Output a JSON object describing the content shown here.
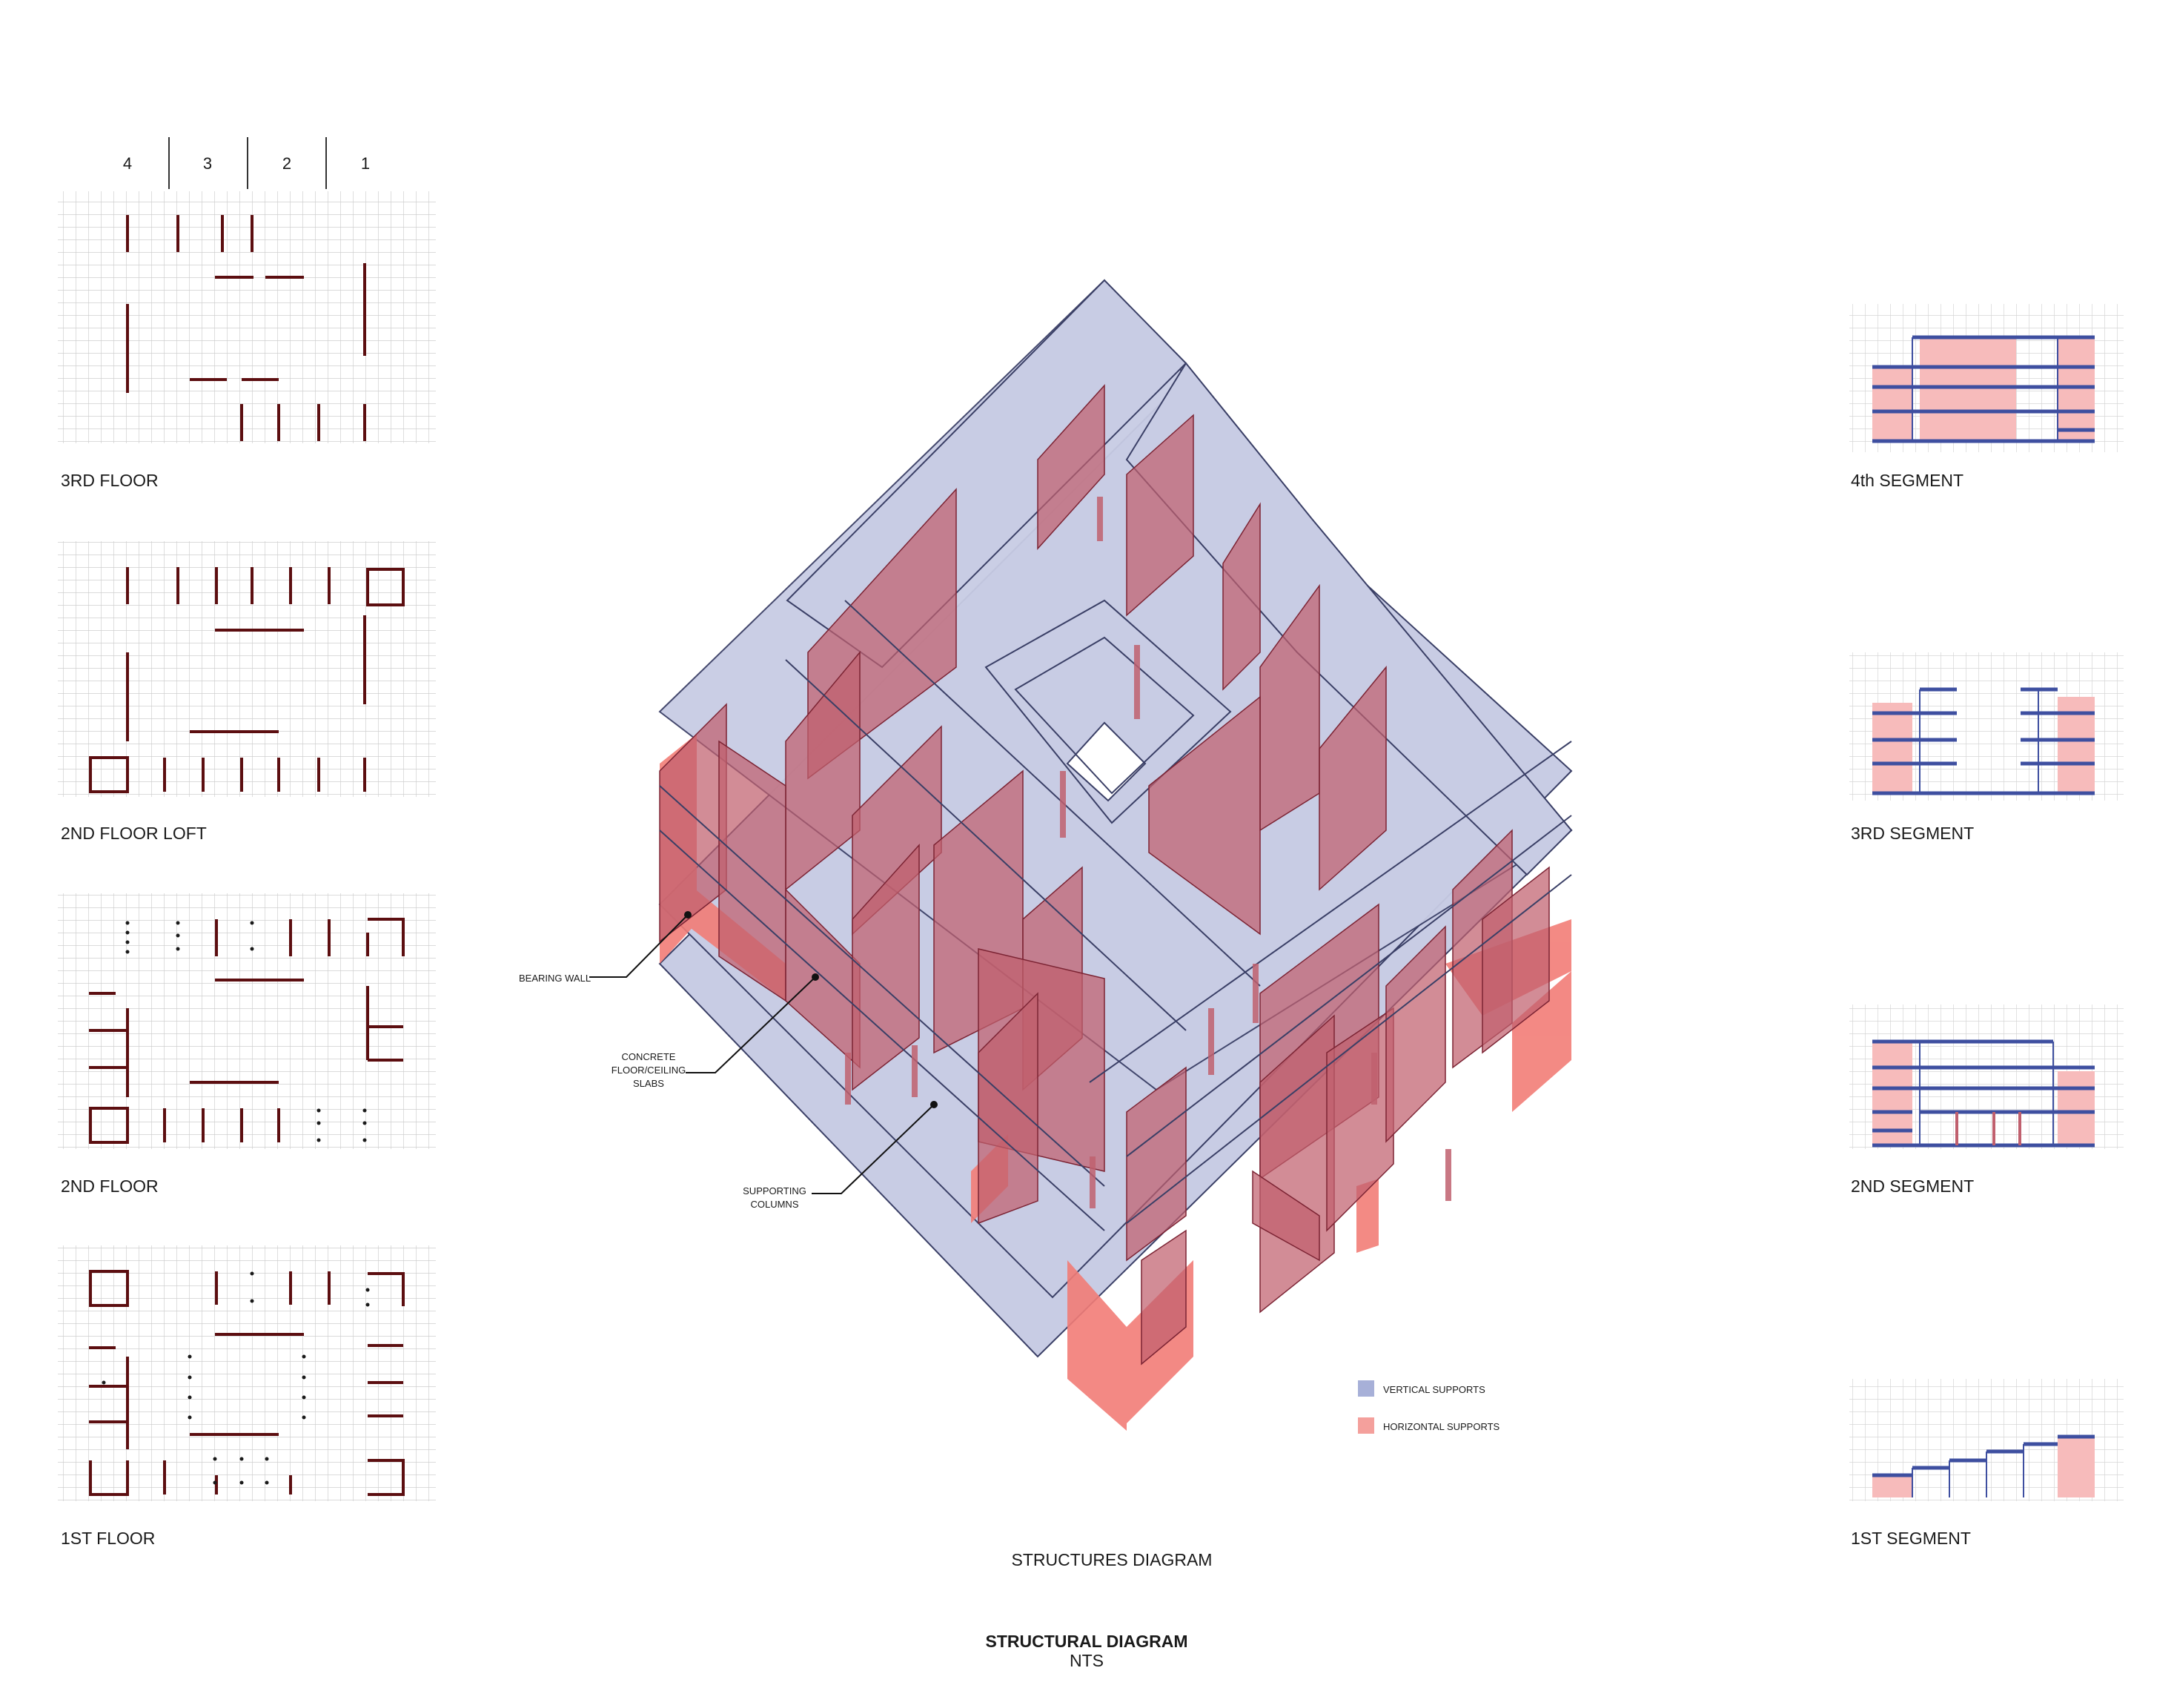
{
  "column_header": [
    "4",
    "3",
    "2",
    "1"
  ],
  "plans": [
    {
      "label": "3RD FLOOR"
    },
    {
      "label": "2ND FLOOR LOFT"
    },
    {
      "label": "2ND FLOOR"
    },
    {
      "label": "1ST FLOOR"
    }
  ],
  "segments": [
    {
      "label": "4th SEGMENT"
    },
    {
      "label": "3RD SEGMENT"
    },
    {
      "label": "2ND SEGMENT"
    },
    {
      "label": "1ST SEGMENT"
    }
  ],
  "callouts": {
    "bearing_wall": [
      "BEARING WALL"
    ],
    "slabs": [
      "CONCRETE",
      "FLOOR/CEILING",
      "SLABS"
    ],
    "columns": [
      "SUPPORTING",
      "COLUMNS"
    ]
  },
  "legend": [
    {
      "label": "VERTICAL SUPPORTS",
      "color": "#a7b0d8"
    },
    {
      "label": "HORIZONTAL SUPPORTS",
      "color": "#f4a09c"
    }
  ],
  "center_caption": "STRUCTURES DIAGRAM",
  "footer": {
    "title": "STRUCTURAL DIAGRAM",
    "subtitle": "NTS"
  },
  "colors": {
    "slab": "#c8cce4",
    "wall": "#c0606e",
    "wall_base": "#f27d77",
    "plan_wall": "#5c0e10",
    "segment_line": "#3e4fa0",
    "segment_fill": "#f7bbbb"
  }
}
